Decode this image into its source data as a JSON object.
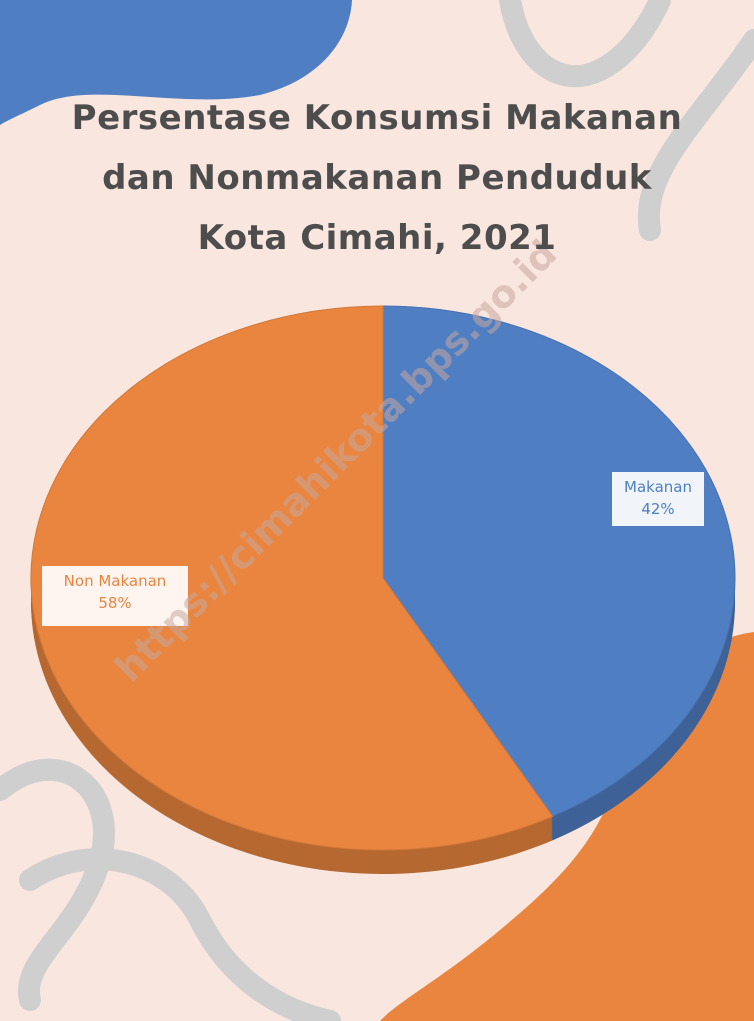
{
  "chart_data": {
    "type": "pie",
    "title": "Persentase Konsumsi Makanan dan Nonmakanan Penduduk Kota Cimahi, 2021",
    "categories": [
      "Makanan",
      "Non Makanan"
    ],
    "values": [
      42,
      58
    ],
    "value_labels": [
      "42%",
      "58%"
    ],
    "colors": [
      "#4f7ec2",
      "#e9853f"
    ],
    "watermark": "https://cimahikota.bps.go.id"
  }
}
